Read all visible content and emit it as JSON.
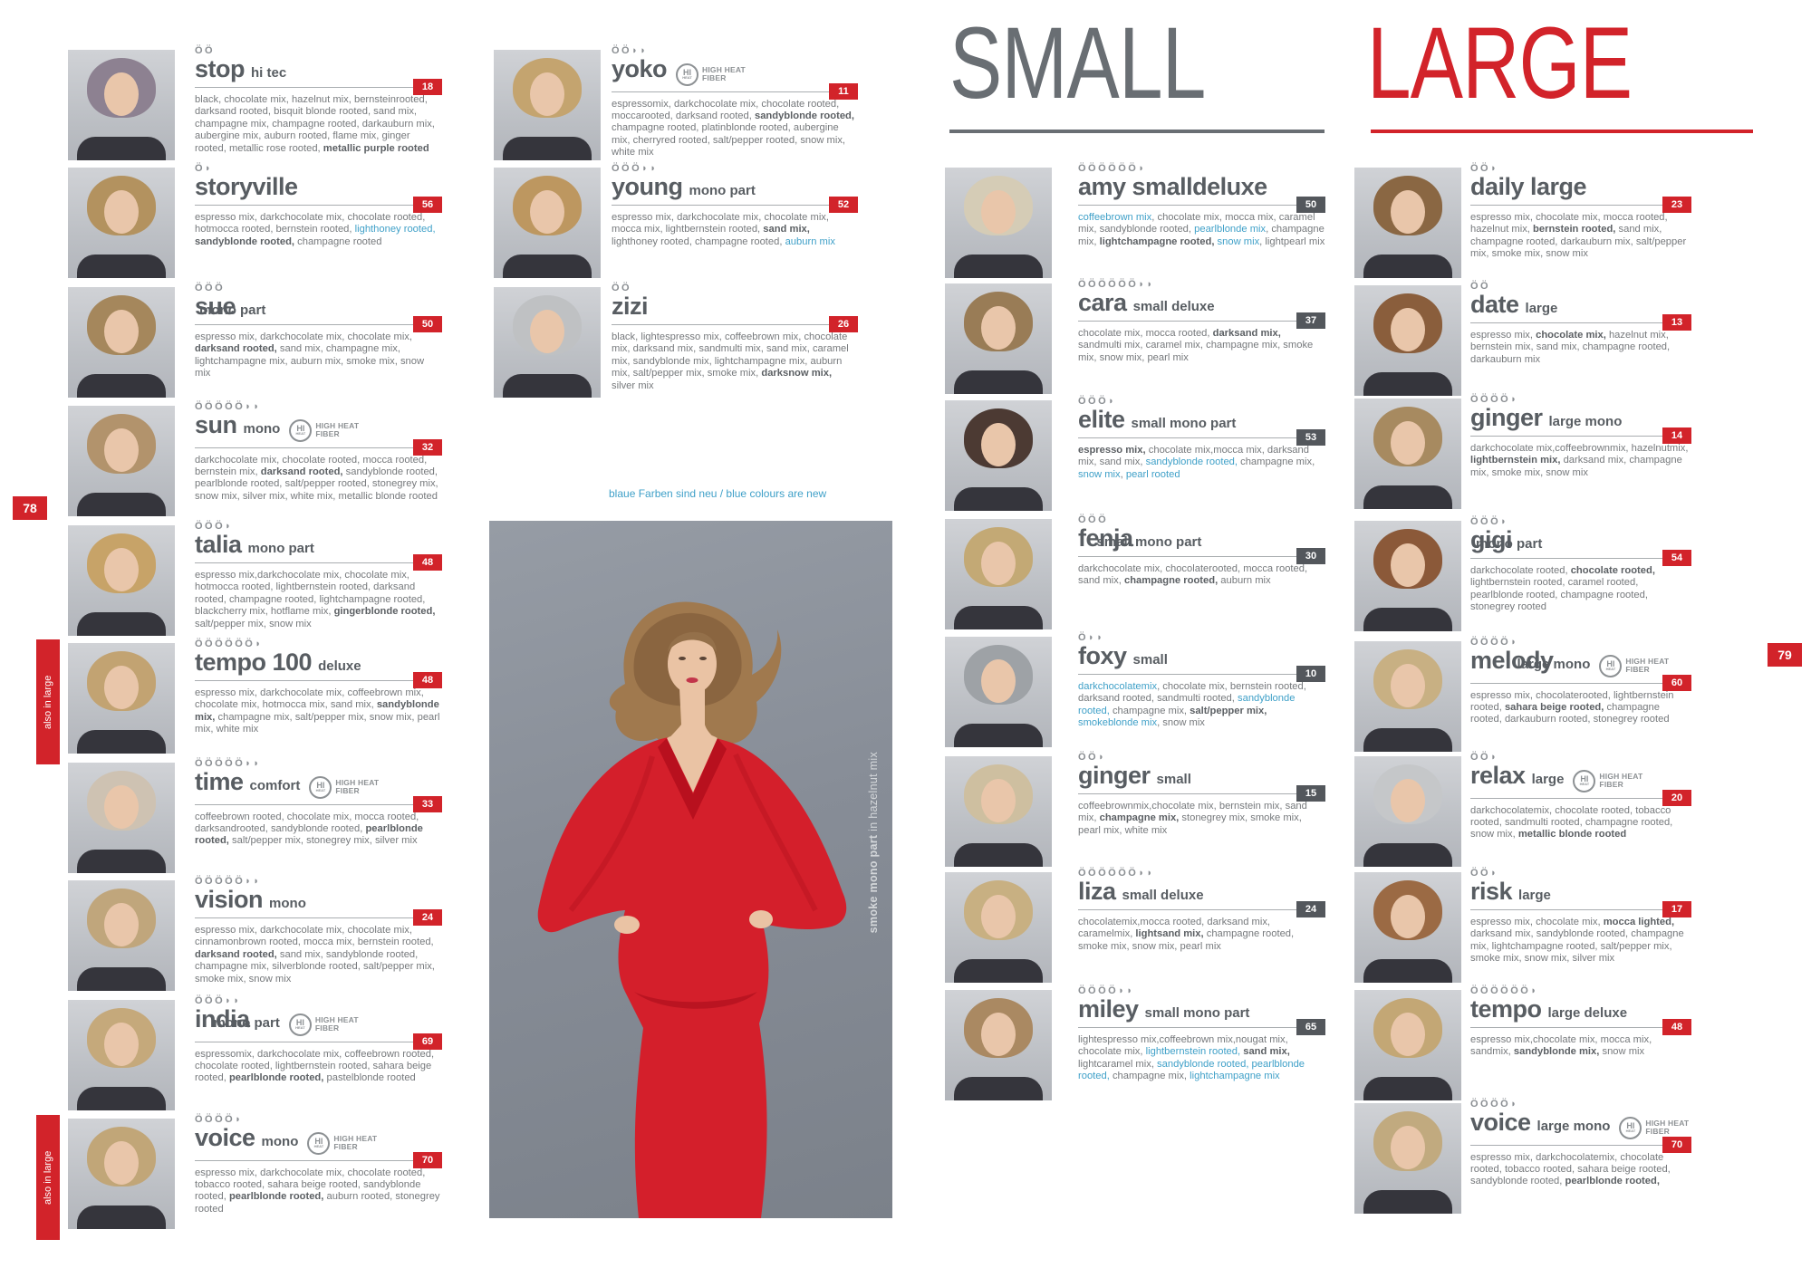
{
  "brand_colors": {
    "red": "#d2232a",
    "gray_badge": "#53575c",
    "blue_text": "#3fa0c8",
    "title_gray": "#585d62"
  },
  "hhf_icon": {
    "circle_top": "HI",
    "circle_bottom": "HEAT",
    "label_line1": "HIGH HEAT",
    "label_line2": "FIBER"
  },
  "page_left": {
    "page_number": "78",
    "also_in_large_label": "also in large",
    "note_blue": "blaue Farben sind neu / blue colours are new",
    "photo_caption_bold": "smoke mono part",
    "photo_caption_rest": " in hazelnut mix",
    "columns": [
      [
        {
          "name": "stop",
          "suffix": "hi tec",
          "sizes": "ÖÖ",
          "badge": "18",
          "hair": "#8d8191",
          "colors": [
            {
              "t": "black, chocolate mix, hazelnut mix, bernsteinrooted, darksand rooted, bisquit blonde rooted, sand mix, champagne mix, champagne rooted, darkauburn mix, aubergine mix, auburn rooted, flame mix, ginger rooted, metallic rose rooted, "
            },
            {
              "t": "metallic purple rooted",
              "s": "b"
            }
          ]
        },
        {
          "name": "storyville",
          "suffix": "",
          "sizes": "Ö◗",
          "badge": "56",
          "hair": "#b3925f",
          "colors": [
            {
              "t": "espresso mix, darkchocolate mix, chocolate rooted, hotmocca rooted, bernstein rooted, "
            },
            {
              "t": "lighthoney rooted,",
              "s": "blue"
            },
            {
              "t": " "
            },
            {
              "t": "sandyblonde rooted,",
              "s": "b"
            },
            {
              "t": " champagne rooted"
            }
          ]
        },
        {
          "name": "sue",
          "suffix": "mono part",
          "overlap": true,
          "sizes": "ÖÖÖ",
          "badge": "50",
          "hair": "#a5875c",
          "colors": [
            {
              "t": "espresso mix, darkchocolate mix, chocolate mix, "
            },
            {
              "t": "darksand rooted,",
              "s": "b"
            },
            {
              "t": " sand mix, champagne mix, lightchampagne mix, auburn mix, smoke mix, snow mix"
            }
          ]
        },
        {
          "name": "sun",
          "suffix": "mono",
          "hhf": true,
          "sizes": "ÖÖÖÖÖ◗◗",
          "badge": "32",
          "hair": "#b2936c",
          "colors": [
            {
              "t": "darkchocolate mix, chocolate rooted, mocca rooted, bernstein mix, "
            },
            {
              "t": "darksand rooted,",
              "s": "b"
            },
            {
              "t": " sandyblonde rooted, pearlblonde rooted, salt/pepper rooted, stonegrey mix, snow mix, silver mix, white mix, metallic blonde rooted"
            }
          ]
        },
        {
          "name": "talia",
          "suffix": "mono part",
          "sizes": "ÖÖÖ◗",
          "badge": "48",
          "hair": "#c7a368",
          "colors": [
            {
              "t": "espresso mix,darkchocolate mix, chocolate mix, hotmocca rooted, lightbernstein rooted, darksand rooted, champagne rooted, lightchampagne rooted, blackcherry mix, hotflame mix, "
            },
            {
              "t": "gingerblonde rooted,",
              "s": "b"
            },
            {
              "t": " salt/pepper mix, snow mix"
            }
          ]
        },
        {
          "name": "tempo 100",
          "suffix": "deluxe",
          "also": true,
          "sizes": "ÖÖÖÖÖÖ◗",
          "badge": "48",
          "hair": "#c2a372",
          "colors": [
            {
              "t": "espresso mix, darkchocolate mix, coffeebrown mix, chocolate mix, hotmocca mix, sand mix, "
            },
            {
              "t": "sandyblonde mix,",
              "s": "b"
            },
            {
              "t": " champagne mix, salt/pepper mix, snow mix, pearl mix, white mix"
            }
          ]
        },
        {
          "name": "time",
          "suffix": "comfort",
          "hhf": true,
          "sizes": "ÖÖÖÖÖ◗◗",
          "badge": "33",
          "hair": "#cec2b2",
          "colors": [
            {
              "t": "coffeebrown rooted, chocolate mix, mocca rooted, darksandrooted, sandyblonde rooted, "
            },
            {
              "t": "pearlblonde rooted,",
              "s": "b"
            },
            {
              "t": " salt/pepper mix, stonegrey mix, silver mix"
            }
          ]
        },
        {
          "name": "vision",
          "suffix": "mono",
          "sizes": "ÖÖÖÖÖ◗◗",
          "badge": "24",
          "hair": "#c0a67c",
          "colors": [
            {
              "t": "espresso mix, darkchocolate mix, chocolate mix, cinnamonbrown rooted, mocca mix, bernstein rooted, "
            },
            {
              "t": "darksand rooted,",
              "s": "b"
            },
            {
              "t": " sand mix, sandyblonde rooted, champagne mix, silverblonde rooted, salt/pepper mix, smoke mix, snow mix"
            }
          ]
        },
        {
          "name": "india",
          "suffix": "mono part",
          "overlap": true,
          "hhf": true,
          "sizes": "ÖÖÖ◗◗",
          "badge": "69",
          "hair": "#c5a97b",
          "colors": [
            {
              "t": "espressomix, darkchocolate mix, coffeebrown rooted, chocolate rooted, lightbernstein rooted, sahara beige rooted, "
            },
            {
              "t": "pearlblonde rooted,",
              "s": "b"
            },
            {
              "t": " pastelblonde rooted"
            }
          ]
        },
        {
          "name": "voice",
          "suffix": "mono",
          "hhf": true,
          "also": true,
          "sizes": "ÖÖÖÖ◗",
          "badge": "70",
          "hair": "#c1a678",
          "colors": [
            {
              "t": "espresso mix, darkchocolate mix, chocolate rooted, tobacco rooted, sahara beige rooted, sandyblonde rooted, "
            },
            {
              "t": "pearlblonde rooted,",
              "s": "b"
            },
            {
              "t": " auburn rooted, stonegrey rooted"
            }
          ]
        }
      ],
      [
        {
          "name": "yoko",
          "suffix": "",
          "hhf": true,
          "sizes": "ÖÖ◗◗",
          "badge": "11",
          "hair": "#c4a46f",
          "colors": [
            {
              "t": "espressomix, darkchocolate mix, chocolate rooted, moccarooted, darksand rooted, "
            },
            {
              "t": "sandyblonde rooted,",
              "s": "b"
            },
            {
              "t": " champagne rooted, platinblonde rooted, aubergine mix, cherryred rooted, salt/pepper rooted, snow mix, white mix"
            }
          ]
        },
        {
          "name": "young",
          "suffix": "mono part",
          "sizes": "ÖÖÖ◗◗",
          "badge": "52",
          "hair": "#bd9760",
          "colors": [
            {
              "t": "espresso mix, darkchocolate mix, chocolate mix, mocca mix, lightbernstein rooted, "
            },
            {
              "t": "sand mix,",
              "s": "b"
            },
            {
              "t": " lighthoney rooted, champagne rooted, "
            },
            {
              "t": "auburn mix",
              "s": "blue"
            }
          ]
        },
        {
          "name": "zizi",
          "suffix": "",
          "sizes": "ÖÖ",
          "badge": "26",
          "hair": "#bfc1c3",
          "colors": [
            {
              "t": "black, lightespresso mix, coffeebrown mix, chocolate mix, darksand mix, sandmulti mix, sand mix, caramel mix, sandyblonde mix, lightchampagne mix, auburn mix, salt/pepper mix, smoke mix, "
            },
            {
              "t": "darksnow mix,",
              "s": "b"
            },
            {
              "t": " silver mix"
            }
          ]
        }
      ]
    ]
  },
  "page_right": {
    "page_number": "79",
    "sections": [
      {
        "header": "SMALL",
        "entries": [
          {
            "name": "amy smalldeluxe",
            "suffix": "",
            "sizes": "ÖÖÖÖÖÖ◗",
            "badge": "50",
            "hair": "#d5ccb6",
            "colors": [
              {
                "t": "coffeebrown mix",
                "s": "blue"
              },
              {
                "t": ", chocolate mix, mocca mix, caramel mix, sandyblonde rooted, "
              },
              {
                "t": "pearlblonde mix",
                "s": "blue"
              },
              {
                "t": ", champagne mix, "
              },
              {
                "t": "lightchampagne rooted,",
                "s": "b"
              },
              {
                "t": " "
              },
              {
                "t": "snow mix",
                "s": "blue"
              },
              {
                "t": ", lightpearl mix"
              }
            ]
          },
          {
            "name": "cara",
            "suffix": "small deluxe",
            "sizes": "ÖÖÖÖÖÖ◗◗",
            "badge": "37",
            "hair": "#997c56",
            "colors": [
              {
                "t": "chocolate mix, mocca rooted, "
              },
              {
                "t": "darksand mix,",
                "s": "b"
              },
              {
                "t": " sandmulti mix, caramel mix, champagne mix, smoke mix, snow mix, pearl mix"
              }
            ]
          },
          {
            "name": "elite",
            "suffix": "small mono part",
            "sizes": "ÖÖÖ◗",
            "badge": "53",
            "hair": "#4c3a33",
            "colors": [
              {
                "t": "espresso mix,",
                "s": "b"
              },
              {
                "t": " chocolate mix,mocca mix, darksand mix, sand mix, "
              },
              {
                "t": "sandyblonde rooted,",
                "s": "blue"
              },
              {
                "t": " champagne mix, "
              },
              {
                "t": "snow mix",
                "s": "blue"
              },
              {
                "t": ", "
              },
              {
                "t": "pearl rooted",
                "s": "blue"
              }
            ]
          },
          {
            "name": "fenja",
            "suffix": "small mono part",
            "overlap": true,
            "sizes": "ÖÖÖ",
            "badge": "30",
            "hair": "#c3a975",
            "colors": [
              {
                "t": "darkchocolate mix, chocolaterooted, mocca rooted, sand mix, "
              },
              {
                "t": "champagne rooted,",
                "s": "b"
              },
              {
                "t": " auburn mix"
              }
            ]
          },
          {
            "name": "foxy",
            "suffix": "small",
            "sizes": "Ö◗◗",
            "badge": "10",
            "hair": "#9ea2a6",
            "colors": [
              {
                "t": "darkchocolatemix",
                "s": "blue"
              },
              {
                "t": ", chocolate mix, bernstein rooted, darksand rooted, sandmulti rooted, "
              },
              {
                "t": "sandyblonde rooted,",
                "s": "blue"
              },
              {
                "t": " champagne mix, "
              },
              {
                "t": "salt/pepper mix,",
                "s": "b"
              },
              {
                "t": " "
              },
              {
                "t": "smokeblonde mix",
                "s": "blue"
              },
              {
                "t": ", snow mix"
              }
            ]
          },
          {
            "name": "ginger",
            "suffix": "small",
            "sizes": "ÖÖ◗",
            "badge": "15",
            "hair": "#cebfa0",
            "colors": [
              {
                "t": "coffeebrownmix,chocolate mix, bernstein mix, sand mix, "
              },
              {
                "t": "champagne mix,",
                "s": "b"
              },
              {
                "t": " stonegrey mix, smoke mix, pearl mix, white mix"
              }
            ]
          },
          {
            "name": "liza",
            "suffix": "small deluxe",
            "sizes": "ÖÖÖÖÖÖ◗◗",
            "badge": "24",
            "hair": "#c8b082",
            "colors": [
              {
                "t": "chocolatemix,mocca rooted, darksand mix, caramelmix, "
              },
              {
                "t": "lightsand mix,",
                "s": "b"
              },
              {
                "t": " champagne rooted, smoke mix, snow mix, pearl mix"
              }
            ]
          },
          {
            "name": "miley",
            "suffix": "small mono part",
            "sizes": "ÖÖÖÖ◗◗",
            "badge": "65",
            "hair": "#aa8962",
            "colors": [
              {
                "t": "lightespresso mix,coffeebrown mix,nougat mix, chocolate mix, "
              },
              {
                "t": "lightbernstein rooted,",
                "s": "blue"
              },
              {
                "t": " "
              },
              {
                "t": "sand mix,",
                "s": "b"
              },
              {
                "t": " lightcaramel mix, "
              },
              {
                "t": "sandyblonde rooted,",
                "s": "blue"
              },
              {
                "t": " "
              },
              {
                "t": "pearlblonde rooted,",
                "s": "blue"
              },
              {
                "t": " champagne mix, "
              },
              {
                "t": "lightchampagne mix",
                "s": "blue"
              }
            ]
          }
        ]
      },
      {
        "header": "LARGE",
        "entries": [
          {
            "name": "daily large",
            "suffix": "",
            "sizes": "ÖÖ◗",
            "badge": "23",
            "hair": "#8a6743",
            "colors": [
              {
                "t": "espresso mix, chocolate mix, mocca rooted, hazelnut mix, "
              },
              {
                "t": "bernstein rooted,",
                "s": "b"
              },
              {
                "t": " sand mix, champagne rooted, darkauburn mix, salt/pepper mix, smoke mix, snow mix"
              }
            ]
          },
          {
            "name": "date",
            "suffix": "large",
            "sizes": "ÖÖ",
            "badge": "13",
            "hair": "#8a5e3c",
            "colors": [
              {
                "t": "espresso mix, "
              },
              {
                "t": "chocolate mix,",
                "s": "b"
              },
              {
                "t": " hazelnut mix, bernstein mix, sand mix, champagne rooted, darkauburn mix"
              }
            ]
          },
          {
            "name": "ginger",
            "suffix": "large mono",
            "sizes": "ÖÖÖÖ◗",
            "badge": "14",
            "hair": "#a78a60",
            "colors": [
              {
                "t": "darkchocolate mix,coffeebrownmix, hazelnutmix, "
              },
              {
                "t": "lightbernstein mix,",
                "s": "b"
              },
              {
                "t": " darksand mix, champagne mix, smoke mix, snow mix"
              }
            ]
          },
          {
            "name": "gigi",
            "suffix": "mono part",
            "overlap": true,
            "sizes": "ÖÖÖ◗",
            "badge": "54",
            "hair": "#8b5939",
            "colors": [
              {
                "t": "darkchocolate rooted, "
              },
              {
                "t": "chocolate rooted,",
                "s": "b"
              },
              {
                "t": " lightbernstein rooted, caramel rooted, pearlblonde rooted, champagne rooted, stonegrey rooted"
              }
            ]
          },
          {
            "name": "melody",
            "suffix": "large mono",
            "overlap": true,
            "hhf": true,
            "sizes": "ÖÖÖÖ◗",
            "badge": "60",
            "hair": "#c8b083",
            "colors": [
              {
                "t": "espresso mix, chocolaterooted, lightbernstein rooted, "
              },
              {
                "t": "sahara beige rooted,",
                "s": "b"
              },
              {
                "t": " champagne rooted, darkauburn rooted, stonegrey rooted"
              }
            ]
          },
          {
            "name": "relax",
            "suffix": "large",
            "hhf": true,
            "sizes": "ÖÖ◗",
            "badge": "20",
            "hair": "#c5c7c9",
            "colors": [
              {
                "t": "darkchocolatemix, chocolate rooted, tobacco rooted, sandmulti rooted, champagne rooted, snow mix, "
              },
              {
                "t": "metallic blonde rooted",
                "s": "b"
              }
            ]
          },
          {
            "name": "risk",
            "suffix": "large",
            "sizes": "ÖÖ◗",
            "badge": "17",
            "hair": "#9b6a44",
            "colors": [
              {
                "t": "espresso mix, chocolate mix, "
              },
              {
                "t": "mocca lighted,",
                "s": "b"
              },
              {
                "t": " darksand mix, sandyblonde rooted, champagne mix, lightchampagne rooted, salt/pepper mix, smoke mix, snow mix, silver mix"
              }
            ]
          },
          {
            "name": "tempo",
            "suffix": "large deluxe",
            "sizes": "ÖÖÖÖÖÖ◗",
            "badge": "48",
            "hair": "#c3a775",
            "colors": [
              {
                "t": "espresso mix,chocolate mix, mocca mix, sandmix, "
              },
              {
                "t": "sandyblonde mix,",
                "s": "b"
              },
              {
                "t": " snow mix"
              }
            ]
          },
          {
            "name": "voice",
            "suffix": "large mono",
            "hhf": true,
            "sizes": "ÖÖÖÖ◗",
            "badge": "70",
            "hair": "#c1aa7f",
            "colors": [
              {
                "t": "espresso mix, darkchocolatemix, chocolate rooted, tobacco rooted, sahara beige rooted, sandyblonde rooted, "
              },
              {
                "t": "pearlblonde rooted,",
                "s": "b"
              }
            ]
          }
        ]
      }
    ]
  }
}
